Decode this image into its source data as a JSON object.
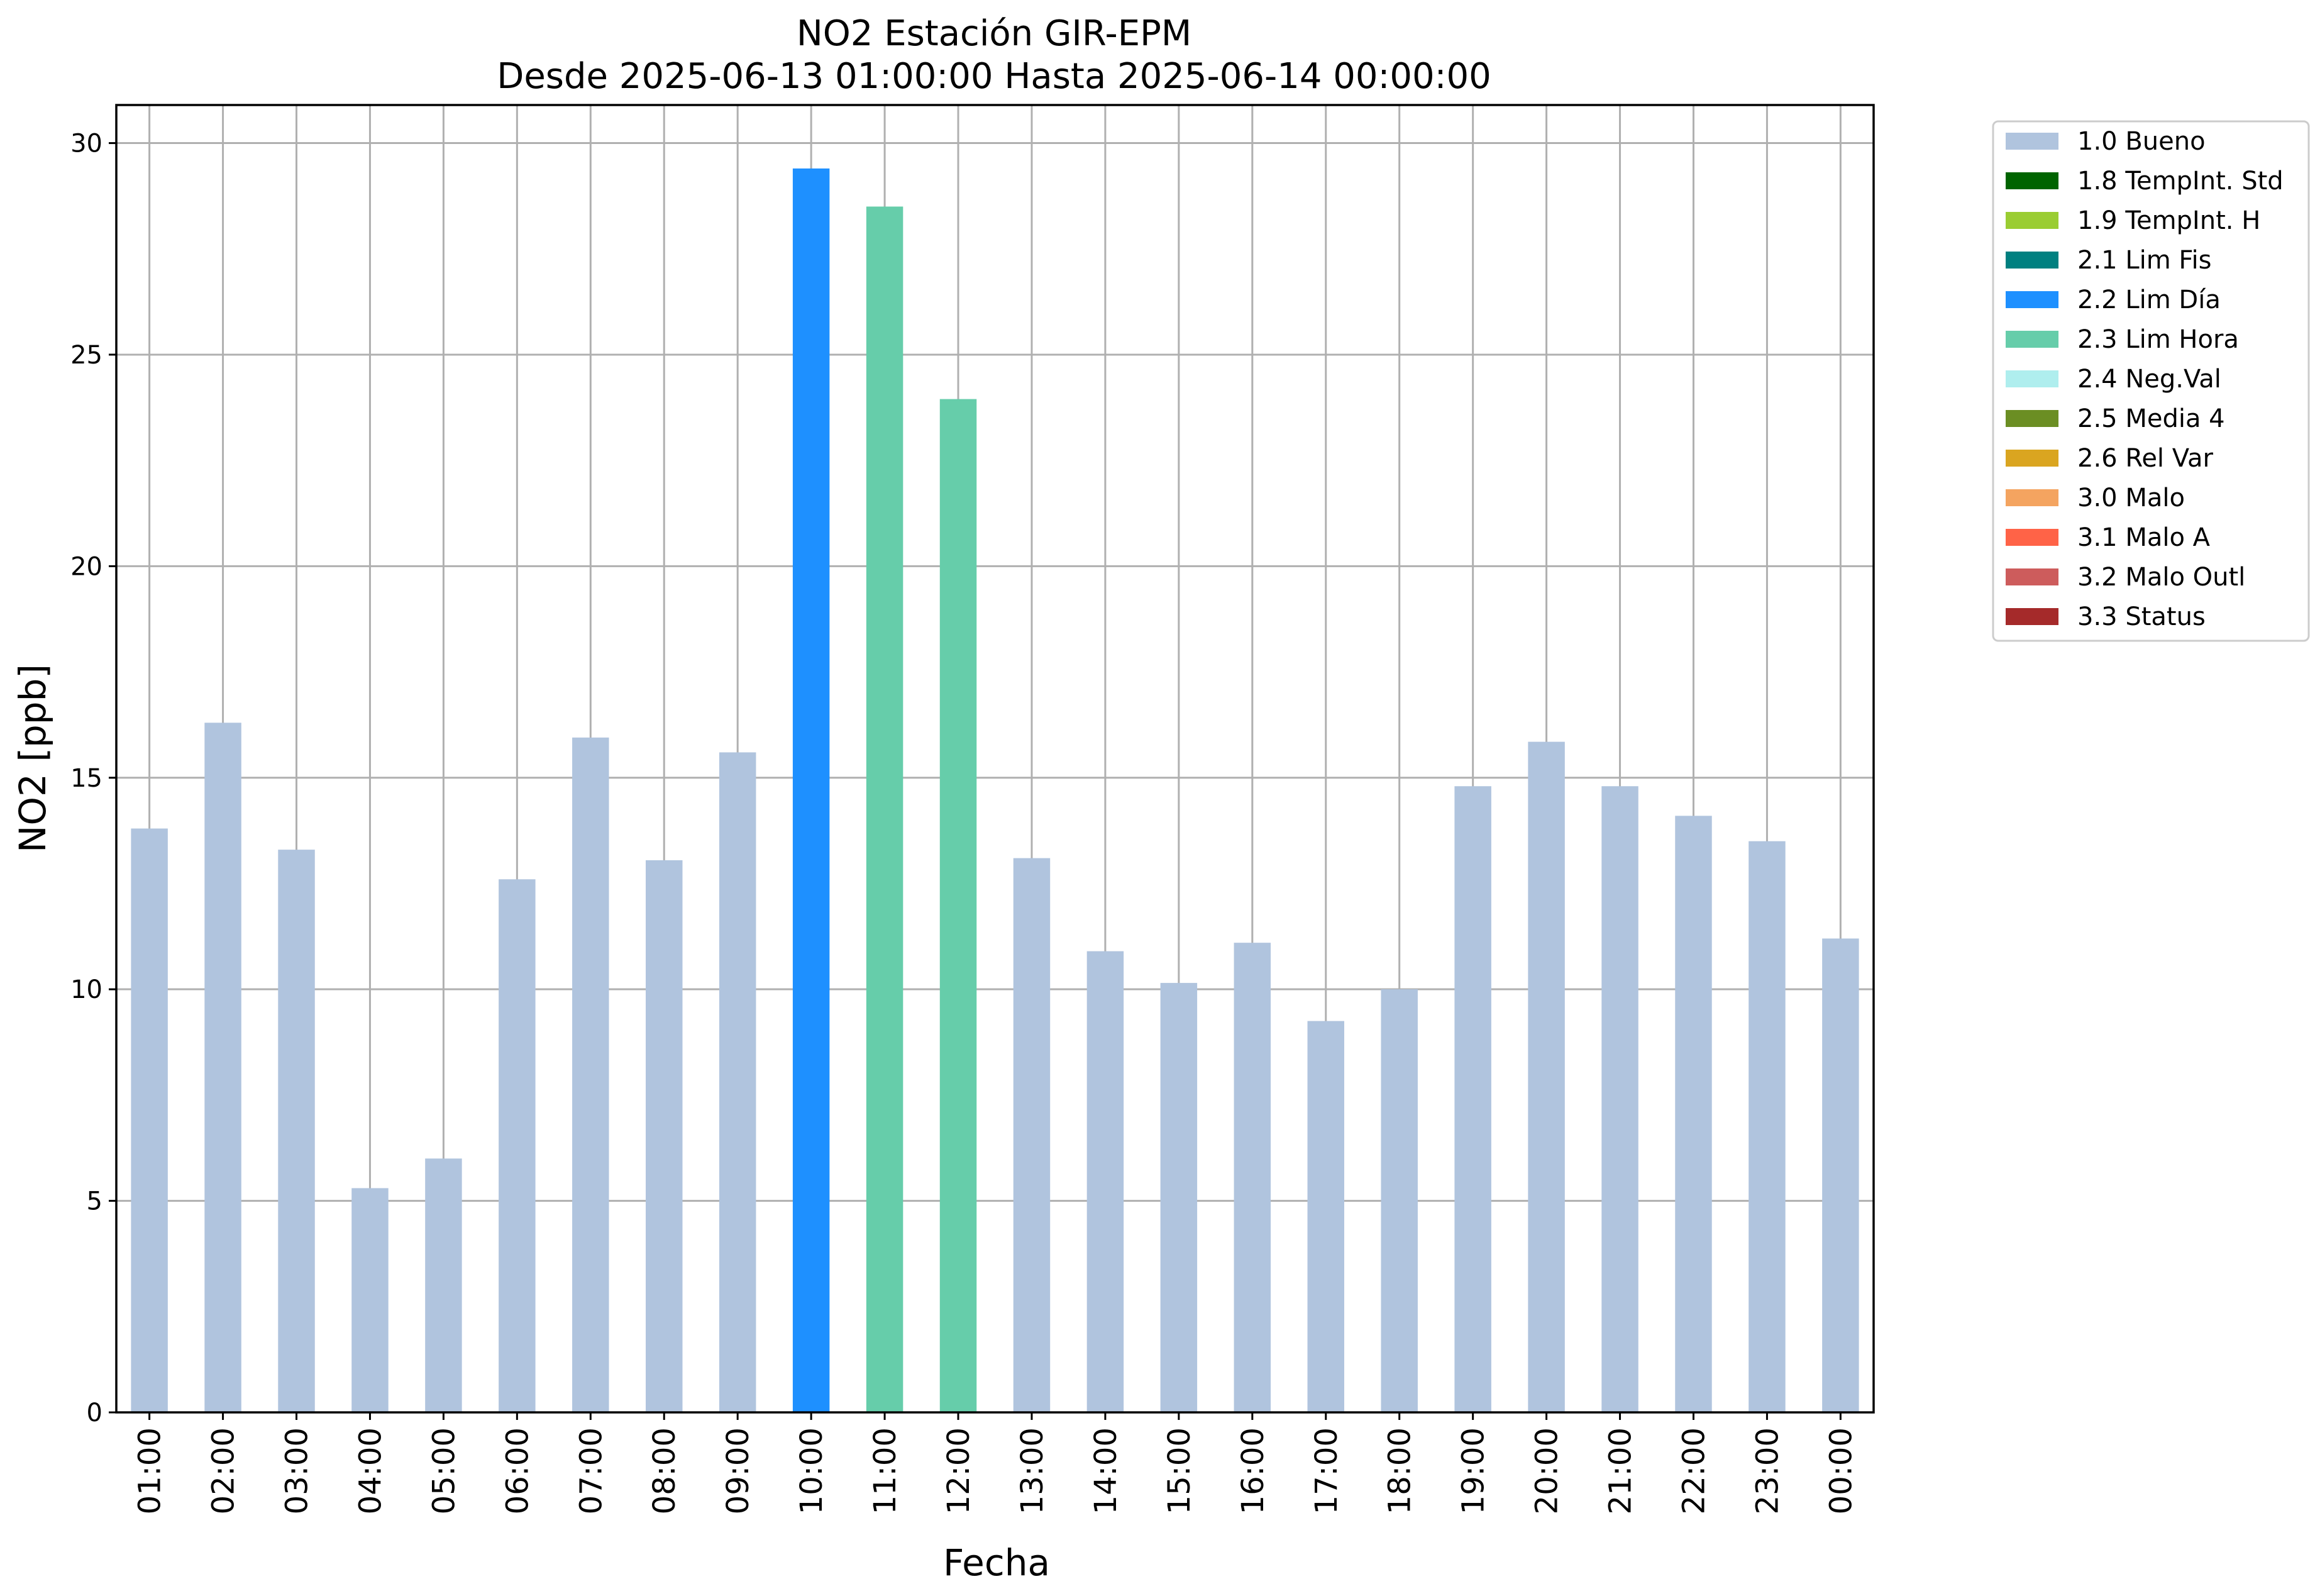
{
  "chart_data": {
    "type": "bar",
    "title": "NO2 Estación GIR-EPM",
    "subtitle": "Desde 2025-06-13 01:00:00 Hasta 2025-06-14 00:00:00",
    "xlabel": "Fecha",
    "ylabel": "NO2 [ppb]",
    "ylim": [
      0,
      30.9
    ],
    "yticks": [
      0,
      5,
      10,
      15,
      20,
      25,
      30
    ],
    "grid": true,
    "legend_position": "outside-top-right",
    "categories": [
      "01:00",
      "02:00",
      "03:00",
      "04:00",
      "05:00",
      "06:00",
      "07:00",
      "08:00",
      "09:00",
      "10:00",
      "11:00",
      "12:00",
      "13:00",
      "14:00",
      "15:00",
      "16:00",
      "17:00",
      "18:00",
      "19:00",
      "20:00",
      "21:00",
      "22:00",
      "23:00",
      "00:00"
    ],
    "values": [
      13.8,
      16.3,
      13.3,
      5.3,
      6.0,
      12.6,
      15.95,
      13.05,
      15.6,
      29.4,
      28.5,
      23.95,
      13.1,
      10.9,
      10.15,
      11.1,
      9.25,
      10.0,
      14.8,
      15.85,
      14.8,
      14.1,
      13.5,
      11.2
    ],
    "bar_flags": [
      "1.0 Bueno",
      "1.0 Bueno",
      "1.0 Bueno",
      "1.0 Bueno",
      "1.0 Bueno",
      "1.0 Bueno",
      "1.0 Bueno",
      "1.0 Bueno",
      "1.0 Bueno",
      "2.2 Lim Día",
      "2.3 Lim Hora",
      "2.3 Lim Hora",
      "1.0 Bueno",
      "1.0 Bueno",
      "1.0 Bueno",
      "1.0 Bueno",
      "1.0 Bueno",
      "1.0 Bueno",
      "1.0 Bueno",
      "1.0 Bueno",
      "1.0 Bueno",
      "1.0 Bueno",
      "1.0 Bueno",
      "1.0 Bueno"
    ],
    "legend": [
      {
        "label": "1.0 Bueno",
        "color": "#b0c4de"
      },
      {
        "label": "1.8 TempInt. Std",
        "color": "#006400"
      },
      {
        "label": "1.9 TempInt. H",
        "color": "#9acd32"
      },
      {
        "label": "2.1 Lim Fis",
        "color": "#008080"
      },
      {
        "label": "2.2 Lim Día",
        "color": "#1e90ff"
      },
      {
        "label": "2.3 Lim Hora",
        "color": "#66cdaa"
      },
      {
        "label": "2.4 Neg.Val",
        "color": "#afeeee"
      },
      {
        "label": "2.5 Media 4",
        "color": "#6b8e23"
      },
      {
        "label": "2.6 Rel Var",
        "color": "#daa520"
      },
      {
        "label": "3.0 Malo",
        "color": "#f4a460"
      },
      {
        "label": "3.1 Malo A",
        "color": "#ff6347"
      },
      {
        "label": "3.2 Malo Outl",
        "color": "#cd5c5c"
      },
      {
        "label": "3.3 Status",
        "color": "#a52a2a"
      }
    ]
  }
}
